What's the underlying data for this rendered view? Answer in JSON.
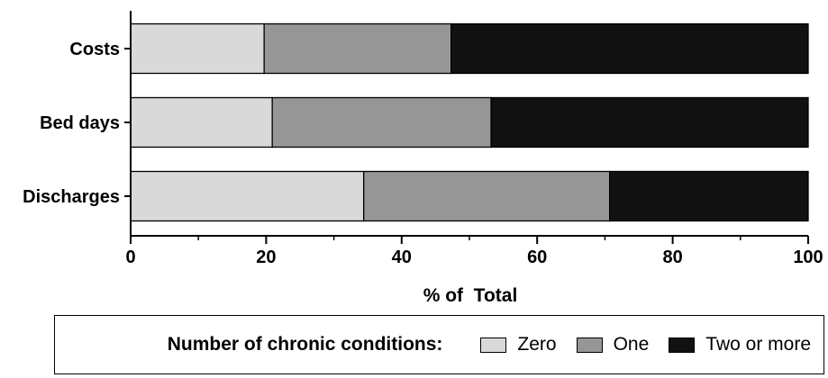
{
  "chart_data": {
    "type": "bar",
    "orientation": "horizontal",
    "stacked": true,
    "categories": [
      "Costs",
      "Bed days",
      "Discharges"
    ],
    "series": [
      {
        "name": "Zero",
        "values": [
          19.7,
          20.9,
          34.4
        ],
        "color": "#d9d9d9"
      },
      {
        "name": "One",
        "values": [
          27.6,
          32.3,
          36.3
        ],
        "color": "#969696"
      },
      {
        "name": "Two or more",
        "values": [
          52.7,
          46.8,
          29.3
        ],
        "color": "#111111"
      }
    ],
    "xlabel": "% of  Total",
    "ylabel": "",
    "xlim": [
      0,
      100
    ],
    "xticks": [
      0,
      20,
      40,
      60,
      80,
      100
    ],
    "grid": false,
    "legend": {
      "title": "Number of chronic conditions:",
      "placement": "bottom"
    }
  }
}
